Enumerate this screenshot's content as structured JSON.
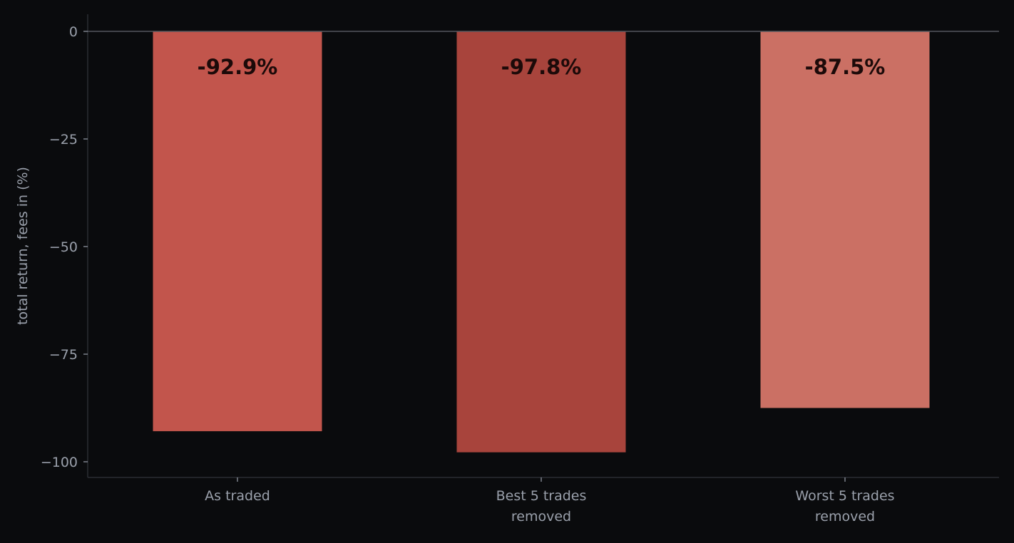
{
  "colors": {
    "background": "#0a0b0d",
    "axis": "#2a2d33",
    "zero_line": "#55585f",
    "tick_text": "#9aa0ab",
    "data_label_text": "#1c0a09"
  },
  "chart_data": {
    "type": "bar",
    "title": "",
    "xlabel": "",
    "ylabel": "total return, fees in (%)",
    "ylim": [
      -104,
      4
    ],
    "yticks": [
      0,
      -25,
      -50,
      -75,
      -100
    ],
    "ytick_labels": [
      "0",
      "−25",
      "−50",
      "−75",
      "−100"
    ],
    "grid": false,
    "categories": [
      [
        "As traded"
      ],
      [
        "Best 5 trades",
        "removed"
      ],
      [
        "Worst 5 trades",
        "removed"
      ]
    ],
    "values": [
      -92.9,
      -97.8,
      -87.5
    ],
    "data_labels": [
      "-92.9%",
      "-97.8%",
      "-87.5%"
    ],
    "bar_colors": [
      "#c2554c",
      "#a8443c",
      "#cb7064"
    ]
  }
}
